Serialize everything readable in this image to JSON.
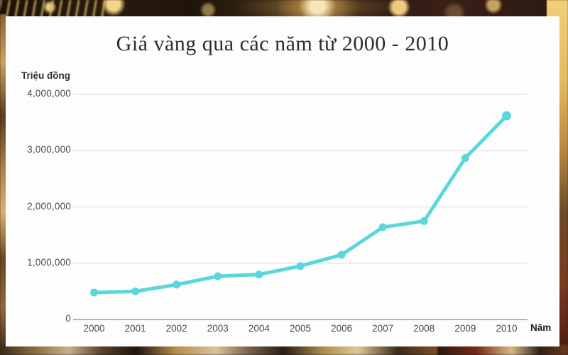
{
  "card": {
    "title": "Giá vàng qua các năm từ 2000 - 2010",
    "y_unit_label": "Triệu đồng",
    "x_unit_label": "Năm"
  },
  "chart": {
    "line_color": "#5bd6dc",
    "grid_color": "#d9d9d9",
    "axis_color": "#9c9c9c",
    "card_bg": "#fdfdfd",
    "tick_label_color": "#4a4a4a",
    "title_color": "#2c2c2c"
  },
  "chart_data": {
    "type": "line",
    "title": "Giá vàng qua các năm từ 2000 - 2010",
    "xlabel": "Năm",
    "ylabel": "Triệu đồng",
    "categories": [
      "2000",
      "2001",
      "2002",
      "2003",
      "2004",
      "2005",
      "2006",
      "2007",
      "2008",
      "2009",
      "2010"
    ],
    "values": [
      480000,
      500000,
      620000,
      770000,
      800000,
      950000,
      1150000,
      1640000,
      1750000,
      2870000,
      3620000
    ],
    "ylim": [
      0,
      4000000
    ],
    "ytick_values": [
      4000000,
      3000000,
      2000000,
      1000000,
      0
    ],
    "ytick_labels": [
      "4,000,000",
      "3,000,000",
      "2,000,000",
      "1,000,000",
      "0"
    ],
    "grid": true,
    "legend": false
  }
}
